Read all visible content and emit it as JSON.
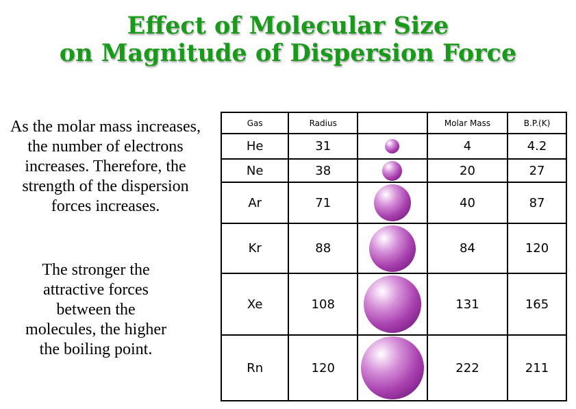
{
  "title": {
    "line1": "Effect of Molecular Size",
    "line2": "on Magnitude of Dispersion Force"
  },
  "text": {
    "paragraph1": "As the molar mass increases, the number of electrons increases. Therefore, the strength of the dispersion forces increases.",
    "paragraph2": "The stronger the attractive forces between the molecules, the higher the boiling point."
  },
  "table": {
    "headers": [
      "Gas",
      "Radius",
      "",
      "Molar Mass",
      "B.P.(K)"
    ],
    "rows": [
      {
        "gas": "He",
        "radius": "31",
        "molar_mass": "4",
        "bp": "4.2"
      },
      {
        "gas": "Ne",
        "radius": "38",
        "molar_mass": "20",
        "bp": "27"
      },
      {
        "gas": "Ar",
        "radius": "71",
        "molar_mass": "40",
        "bp": "87"
      },
      {
        "gas": "Kr",
        "radius": "88",
        "molar_mass": "84",
        "bp": "120"
      },
      {
        "gas": "Xe",
        "radius": "108",
        "molar_mass": "131",
        "bp": "165"
      },
      {
        "gas": "Rn",
        "radius": "120",
        "molar_mass": "222",
        "bp": "211"
      }
    ]
  },
  "colors": {
    "title": "#1a9a1a",
    "sphere": "#a83fae"
  }
}
